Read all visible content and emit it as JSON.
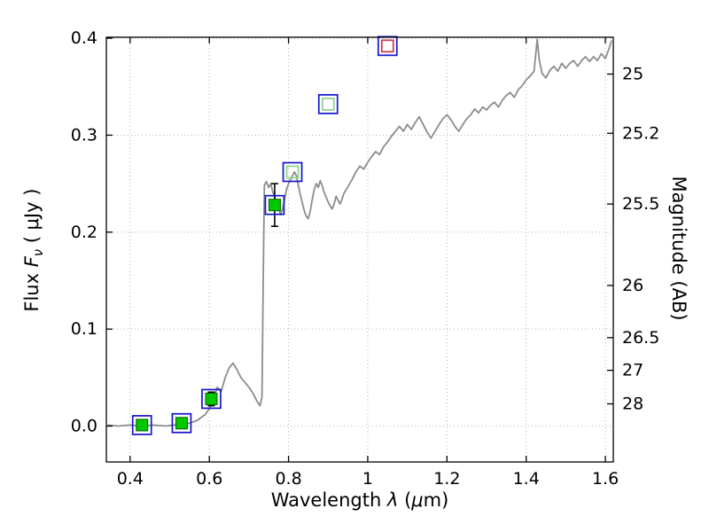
{
  "labels": {
    "x_prefix": "Wavelength  ",
    "x_lambda": "λ",
    "x_unit_open": " (",
    "x_mu": "μ",
    "x_unit_close": "m)",
    "flux_prefix": "Flux  ",
    "flux_symbol": "F",
    "flux_sub": "ν",
    "flux_unit": "  ( μJy )",
    "right_axis": "Magnitude (AB)"
  },
  "chart_data": {
    "type": "line+scatter",
    "title": "",
    "xlabel": "Wavelength λ (μm)",
    "ylabel": "Flux Fν (μJy)",
    "y2label": "Magnitude (AB)",
    "xlim": [
      0.34,
      1.62
    ],
    "ylim": [
      -0.037,
      0.401
    ],
    "grid": {
      "visible": true,
      "style": "dotted",
      "color": "#b3b3b3"
    },
    "x_ticks": [
      0.4,
      0.6,
      0.8,
      1.0,
      1.2,
      1.4,
      1.6
    ],
    "x_tick_labels": [
      "0.4",
      "0.6",
      "0.8",
      "1",
      "1.2",
      "1.4",
      "1.6"
    ],
    "y_ticks": [
      0.0,
      0.1,
      0.2,
      0.3,
      0.4
    ],
    "y_tick_labels": [
      "0.0",
      "0.1",
      "0.2",
      "0.3",
      "0.4"
    ],
    "y2_ticks": [
      {
        "label": "25",
        "flux": 0.363
      },
      {
        "label": "25.2",
        "flux": 0.302
      },
      {
        "label": "25.5",
        "flux": 0.229
      },
      {
        "label": "26",
        "flux": 0.145
      },
      {
        "label": "26.5",
        "flux": 0.0912
      },
      {
        "label": "27",
        "flux": 0.0575
      },
      {
        "label": "28",
        "flux": 0.0229
      }
    ],
    "spectrum": {
      "name": "best-fit template spectrum",
      "color": "#8c8c8c",
      "points": [
        [
          0.345,
          0.001
        ],
        [
          0.37,
          0.0
        ],
        [
          0.4,
          0.001
        ],
        [
          0.43,
          0.0
        ],
        [
          0.46,
          0.001
        ],
        [
          0.49,
          0.0
        ],
        [
          0.51,
          0.001
        ],
        [
          0.53,
          0.002
        ],
        [
          0.55,
          0.003
        ],
        [
          0.57,
          0.006
        ],
        [
          0.59,
          0.012
        ],
        [
          0.6,
          0.018
        ],
        [
          0.61,
          0.028
        ],
        [
          0.62,
          0.04
        ],
        [
          0.63,
          0.036
        ],
        [
          0.64,
          0.05
        ],
        [
          0.65,
          0.06
        ],
        [
          0.66,
          0.065
        ],
        [
          0.67,
          0.058
        ],
        [
          0.68,
          0.05
        ],
        [
          0.69,
          0.045
        ],
        [
          0.7,
          0.04
        ],
        [
          0.71,
          0.034
        ],
        [
          0.72,
          0.026
        ],
        [
          0.728,
          0.021
        ],
        [
          0.733,
          0.03
        ],
        [
          0.736,
          0.15
        ],
        [
          0.739,
          0.248
        ],
        [
          0.744,
          0.252
        ],
        [
          0.75,
          0.246
        ],
        [
          0.755,
          0.25
        ],
        [
          0.76,
          0.242
        ],
        [
          0.765,
          0.236
        ],
        [
          0.77,
          0.23
        ],
        [
          0.775,
          0.224
        ],
        [
          0.78,
          0.218
        ],
        [
          0.785,
          0.224
        ],
        [
          0.79,
          0.234
        ],
        [
          0.795,
          0.244
        ],
        [
          0.8,
          0.25
        ],
        [
          0.805,
          0.254
        ],
        [
          0.81,
          0.258
        ],
        [
          0.815,
          0.262
        ],
        [
          0.82,
          0.258
        ],
        [
          0.825,
          0.248
        ],
        [
          0.83,
          0.238
        ],
        [
          0.835,
          0.23
        ],
        [
          0.84,
          0.222
        ],
        [
          0.845,
          0.216
        ],
        [
          0.85,
          0.214
        ],
        [
          0.855,
          0.222
        ],
        [
          0.86,
          0.234
        ],
        [
          0.865,
          0.244
        ],
        [
          0.87,
          0.25
        ],
        [
          0.875,
          0.246
        ],
        [
          0.88,
          0.253
        ],
        [
          0.885,
          0.248
        ],
        [
          0.89,
          0.241
        ],
        [
          0.895,
          0.236
        ],
        [
          0.9,
          0.231
        ],
        [
          0.905,
          0.227
        ],
        [
          0.91,
          0.224
        ],
        [
          0.915,
          0.229
        ],
        [
          0.92,
          0.237
        ],
        [
          0.925,
          0.233
        ],
        [
          0.93,
          0.229
        ],
        [
          0.935,
          0.234
        ],
        [
          0.94,
          0.24
        ],
        [
          0.95,
          0.247
        ],
        [
          0.96,
          0.254
        ],
        [
          0.97,
          0.262
        ],
        [
          0.98,
          0.268
        ],
        [
          0.99,
          0.265
        ],
        [
          1.0,
          0.272
        ],
        [
          1.01,
          0.278
        ],
        [
          1.02,
          0.283
        ],
        [
          1.03,
          0.28
        ],
        [
          1.04,
          0.288
        ],
        [
          1.05,
          0.293
        ],
        [
          1.06,
          0.299
        ],
        [
          1.07,
          0.304
        ],
        [
          1.08,
          0.309
        ],
        [
          1.09,
          0.304
        ],
        [
          1.1,
          0.311
        ],
        [
          1.11,
          0.306
        ],
        [
          1.12,
          0.313
        ],
        [
          1.13,
          0.319
        ],
        [
          1.14,
          0.311
        ],
        [
          1.15,
          0.303
        ],
        [
          1.16,
          0.297
        ],
        [
          1.17,
          0.304
        ],
        [
          1.18,
          0.311
        ],
        [
          1.19,
          0.317
        ],
        [
          1.2,
          0.321
        ],
        [
          1.21,
          0.316
        ],
        [
          1.22,
          0.309
        ],
        [
          1.23,
          0.304
        ],
        [
          1.24,
          0.311
        ],
        [
          1.25,
          0.317
        ],
        [
          1.26,
          0.321
        ],
        [
          1.27,
          0.327
        ],
        [
          1.28,
          0.323
        ],
        [
          1.29,
          0.329
        ],
        [
          1.3,
          0.326
        ],
        [
          1.31,
          0.331
        ],
        [
          1.32,
          0.334
        ],
        [
          1.33,
          0.329
        ],
        [
          1.34,
          0.336
        ],
        [
          1.35,
          0.341
        ],
        [
          1.36,
          0.344
        ],
        [
          1.37,
          0.339
        ],
        [
          1.38,
          0.347
        ],
        [
          1.39,
          0.351
        ],
        [
          1.4,
          0.357
        ],
        [
          1.41,
          0.361
        ],
        [
          1.42,
          0.366
        ],
        [
          1.428,
          0.399
        ],
        [
          1.433,
          0.378
        ],
        [
          1.44,
          0.364
        ],
        [
          1.45,
          0.359
        ],
        [
          1.46,
          0.367
        ],
        [
          1.47,
          0.371
        ],
        [
          1.48,
          0.366
        ],
        [
          1.49,
          0.374
        ],
        [
          1.5,
          0.369
        ],
        [
          1.51,
          0.374
        ],
        [
          1.52,
          0.377
        ],
        [
          1.53,
          0.371
        ],
        [
          1.54,
          0.377
        ],
        [
          1.55,
          0.381
        ],
        [
          1.56,
          0.376
        ],
        [
          1.57,
          0.381
        ],
        [
          1.58,
          0.377
        ],
        [
          1.59,
          0.384
        ],
        [
          1.6,
          0.379
        ],
        [
          1.61,
          0.39
        ],
        [
          1.615,
          0.397
        ]
      ]
    },
    "observed_photometry": {
      "marker": "filled-square",
      "fill": "#00c800",
      "edge": "#006400",
      "error_color": "#000000",
      "points": [
        {
          "x": 0.43,
          "y": 0.001,
          "err": 0.004
        },
        {
          "x": 0.53,
          "y": 0.003,
          "err": 0.004
        },
        {
          "x": 0.605,
          "y": 0.028,
          "err": 0.007
        },
        {
          "x": 0.765,
          "y": 0.228,
          "err": 0.022
        }
      ]
    },
    "model_photometry": {
      "marker": "open-square",
      "points": [
        {
          "x": 0.81,
          "y": 0.262,
          "edge": "#8fd08f"
        },
        {
          "x": 0.9,
          "y": 0.332,
          "edge": "#8fd08f"
        },
        {
          "x": 1.05,
          "y": 0.392,
          "edge": "#cc3355"
        }
      ]
    },
    "aperture_marker": {
      "marker": "open-square",
      "edge": "#1414cc",
      "size": 21
    }
  }
}
